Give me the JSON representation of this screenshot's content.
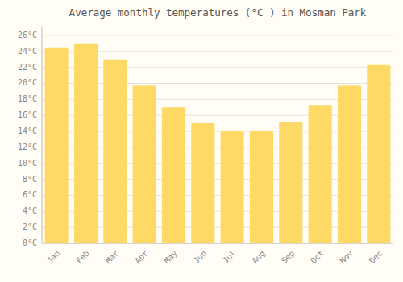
{
  "chart_data": {
    "type": "bar",
    "title": "Average monthly temperatures (°C ) in Mosman Park",
    "categories": [
      "Jan",
      "Feb",
      "Mar",
      "Apr",
      "May",
      "Jun",
      "Jul",
      "Aug",
      "Sep",
      "Oct",
      "Nov",
      "Dec"
    ],
    "values": [
      24.5,
      25.0,
      23.0,
      19.7,
      17.0,
      15.0,
      14.0,
      14.0,
      15.2,
      17.3,
      19.7,
      22.3
    ],
    "color": "#FFD966",
    "ylim": [
      0,
      27
    ],
    "yticks": [
      {
        "value": 0,
        "label": "0°C"
      },
      {
        "value": 2,
        "label": "2°C"
      },
      {
        "value": 4,
        "label": "4°C"
      },
      {
        "value": 6,
        "label": "6°C"
      },
      {
        "value": 8,
        "label": "8°C"
      },
      {
        "value": 10,
        "label": "10°C"
      },
      {
        "value": 12,
        "label": "12°C"
      },
      {
        "value": 14,
        "label": "14°C"
      },
      {
        "value": 16,
        "label": "16°C"
      },
      {
        "value": 18,
        "label": "18°C"
      },
      {
        "value": 20,
        "label": "20°C"
      },
      {
        "value": 22,
        "label": "22°C"
      },
      {
        "value": 24,
        "label": "24°C"
      },
      {
        "value": 26,
        "label": "26°C"
      }
    ],
    "grid": true
  }
}
